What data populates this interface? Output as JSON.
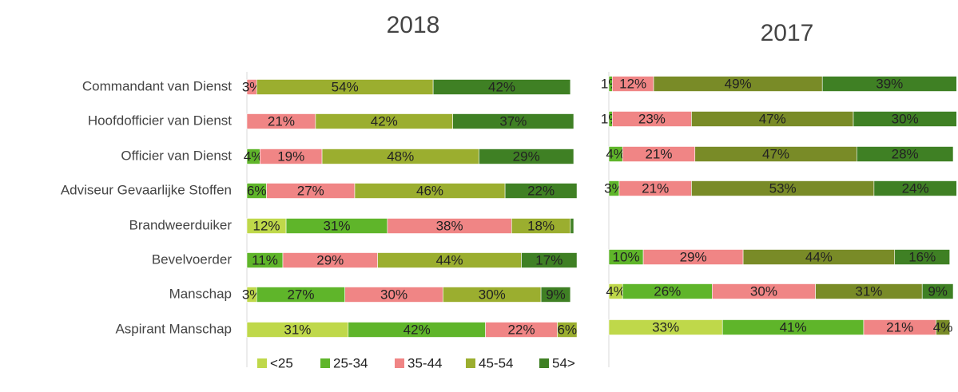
{
  "chart_data": [
    {
      "type": "stacked-barh",
      "title": "2018",
      "categories": [
        "Commandant van Dienst",
        "Hoofdofficier van Dienst",
        "Officier van Dienst",
        "Adviseur Gevaarlijke Stoffen",
        "Brandweerduiker",
        "Bevelvoerder",
        "Manschap",
        "Aspirant Manschap"
      ],
      "xlim": [
        0,
        100
      ],
      "series": [
        {
          "name": "<25",
          "color": "#bfd84a",
          "values": [
            0,
            0,
            0,
            0,
            12,
            0,
            3,
            31
          ],
          "value_labels": [
            null,
            null,
            null,
            null,
            "12%",
            null,
            "3%",
            "31%"
          ]
        },
        {
          "name": "25-34",
          "color": "#5fb52a",
          "values": [
            0,
            0,
            4,
            6,
            31,
            11,
            27,
            42
          ],
          "value_labels": [
            null,
            null,
            "4%",
            "6%",
            "31%",
            "11%",
            "27%",
            "42%"
          ]
        },
        {
          "name": "35-44",
          "color": "#f08585",
          "values": [
            3,
            21,
            19,
            27,
            38,
            29,
            30,
            22
          ],
          "value_labels": [
            "3%",
            "21%",
            "19%",
            "27%",
            "38%",
            "29%",
            "30%",
            "22%"
          ]
        },
        {
          "name": "45-54",
          "color": "#9bae2f",
          "values": [
            54,
            42,
            48,
            46,
            18,
            44,
            30,
            6
          ],
          "value_labels": [
            "54%",
            "42%",
            "48%",
            "46%",
            "18%",
            "44%",
            "30%",
            "6%"
          ]
        },
        {
          "name": "54>",
          "color": "#3f8024",
          "values": [
            42,
            37,
            29,
            22,
            1,
            17,
            9,
            0
          ],
          "value_labels": [
            "42%",
            "37%",
            "29%",
            "22%",
            null,
            "17%",
            "9%",
            null
          ]
        }
      ]
    },
    {
      "type": "stacked-barh",
      "title": "2017",
      "xlim": [
        0,
        100
      ],
      "series": [
        {
          "name": "<25",
          "color": "#bfd84a",
          "values": [
            0,
            0,
            0,
            0,
            null,
            0,
            4,
            33
          ],
          "value_labels": [
            null,
            null,
            null,
            null,
            null,
            null,
            "4%",
            "33%"
          ]
        },
        {
          "name": "25-34",
          "color": "#5fb52a",
          "values": [
            1,
            1,
            4,
            3,
            null,
            10,
            26,
            41
          ],
          "value_labels": [
            "1%",
            "1%",
            "4%",
            "3%",
            null,
            "10%",
            "26%",
            "41%"
          ]
        },
        {
          "name": "35-44",
          "color": "#f08585",
          "values": [
            12,
            23,
            21,
            21,
            null,
            29,
            30,
            21
          ],
          "value_labels": [
            "12%",
            "23%",
            "21%",
            "21%",
            null,
            "29%",
            "30%",
            "21%"
          ]
        },
        {
          "name": "45-54",
          "color": "#798b27",
          "values": [
            49,
            47,
            47,
            53,
            null,
            44,
            31,
            4
          ],
          "value_labels": [
            "49%",
            "47%",
            "47%",
            "53%",
            null,
            "44%",
            "31%",
            "4%"
          ]
        },
        {
          "name": "54>",
          "color": "#3f8024",
          "values": [
            39,
            30,
            28,
            24,
            null,
            16,
            9,
            0
          ],
          "value_labels": [
            "39%",
            "30%",
            "28%",
            "24%",
            null,
            "16%",
            "9%",
            null
          ]
        }
      ]
    }
  ]
}
